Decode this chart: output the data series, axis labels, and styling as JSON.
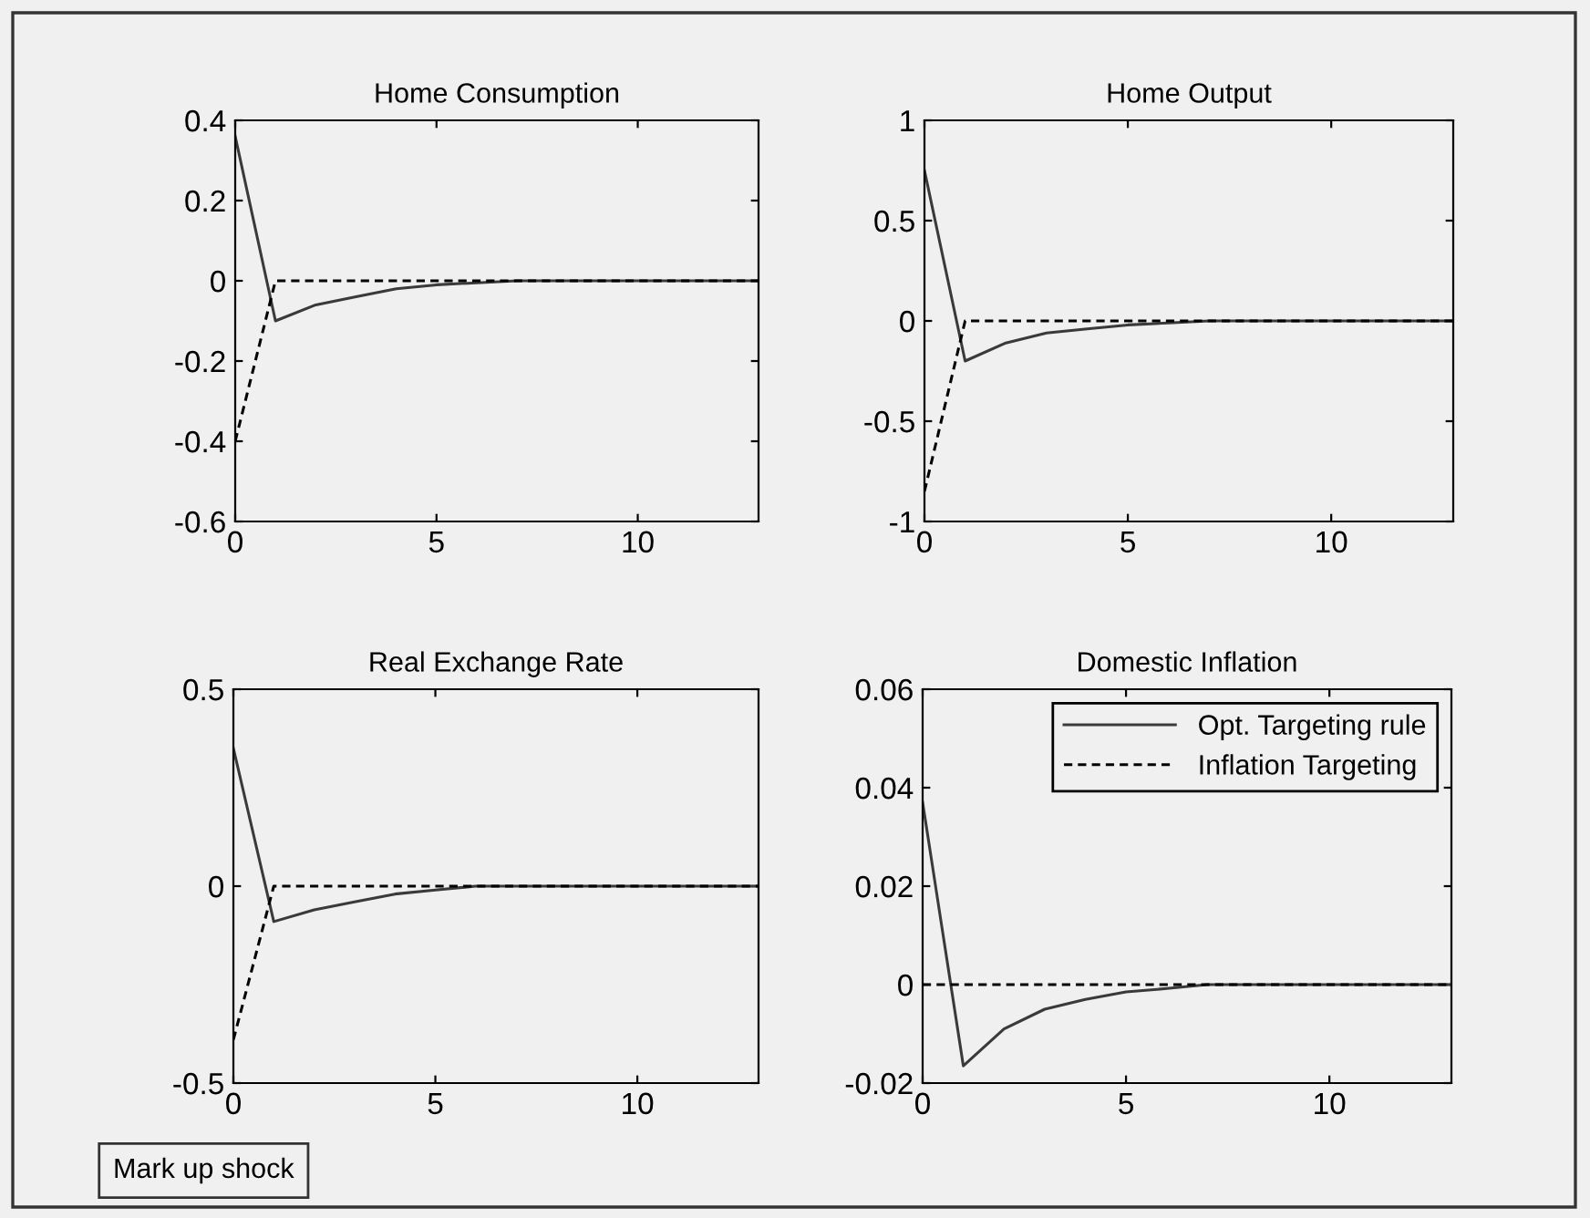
{
  "chart_data": [
    {
      "type": "line",
      "title": "Home Consumption",
      "x": [
        0,
        1,
        2,
        3,
        4,
        5,
        6,
        7,
        8,
        9,
        10,
        11,
        12,
        13
      ],
      "xlim": [
        0,
        13
      ],
      "xticks": [
        0,
        5,
        10
      ],
      "ylim": [
        -0.6,
        0.4
      ],
      "yticks": [
        -0.6,
        -0.4,
        -0.2,
        0,
        0.2,
        0.4
      ],
      "grid": false,
      "legend": false,
      "series": [
        {
          "color": "#3a3a3a",
          "line_style": "solid",
          "values": [
            0.36,
            -0.1,
            -0.06,
            -0.04,
            -0.02,
            -0.01,
            -0.005,
            0,
            0,
            0,
            0,
            0,
            0,
            0
          ]
        },
        {
          "color": "#000000",
          "line_style": "dashed",
          "values": [
            -0.4,
            0,
            0,
            0,
            0,
            0,
            0,
            0,
            0,
            0,
            0,
            0,
            0,
            0
          ]
        }
      ]
    },
    {
      "type": "line",
      "title": "Home Output",
      "x": [
        0,
        1,
        2,
        3,
        4,
        5,
        6,
        7,
        8,
        9,
        10,
        11,
        12,
        13
      ],
      "xlim": [
        0,
        13
      ],
      "xticks": [
        0,
        5,
        10
      ],
      "ylim": [
        -1,
        1
      ],
      "yticks": [
        -1,
        -0.5,
        0,
        0.5,
        1
      ],
      "grid": false,
      "legend": false,
      "series": [
        {
          "color": "#3a3a3a",
          "line_style": "solid",
          "values": [
            0.75,
            -0.2,
            -0.11,
            -0.06,
            -0.04,
            -0.02,
            -0.01,
            0,
            0,
            0,
            0,
            0,
            0,
            0
          ]
        },
        {
          "color": "#000000",
          "line_style": "dashed",
          "values": [
            -0.85,
            0,
            0,
            0,
            0,
            0,
            0,
            0,
            0,
            0,
            0,
            0,
            0,
            0
          ]
        }
      ]
    },
    {
      "type": "line",
      "title": "Real Exchange Rate",
      "x": [
        0,
        1,
        2,
        3,
        4,
        5,
        6,
        7,
        8,
        9,
        10,
        11,
        12,
        13
      ],
      "xlim": [
        0,
        13
      ],
      "xticks": [
        0,
        5,
        10
      ],
      "ylim": [
        -0.5,
        0.5
      ],
      "yticks": [
        -0.5,
        0,
        0.5
      ],
      "grid": false,
      "legend": false,
      "annotations": [
        "Mark up shock"
      ],
      "series": [
        {
          "color": "#3a3a3a",
          "line_style": "solid",
          "values": [
            0.35,
            -0.09,
            -0.06,
            -0.04,
            -0.02,
            -0.01,
            0,
            0,
            0,
            0,
            0,
            0,
            0,
            0
          ]
        },
        {
          "color": "#000000",
          "line_style": "dashed",
          "values": [
            -0.39,
            0,
            0,
            0,
            0,
            0,
            0,
            0,
            0,
            0,
            0,
            0,
            0,
            0
          ]
        }
      ]
    },
    {
      "type": "line",
      "title": "Domestic Inflation",
      "x": [
        0,
        1,
        2,
        3,
        4,
        5,
        6,
        7,
        8,
        9,
        10,
        11,
        12,
        13
      ],
      "xlim": [
        0,
        13
      ],
      "xticks": [
        0,
        5,
        10
      ],
      "ylim": [
        -0.02,
        0.06
      ],
      "yticks": [
        -0.02,
        0,
        0.02,
        0.04,
        0.06
      ],
      "grid": false,
      "legend": "top right",
      "series": [
        {
          "name": "Opt. Targeting rule",
          "color": "#3a3a3a",
          "line_style": "solid",
          "values": [
            0.037,
            -0.0165,
            -0.009,
            -0.005,
            -0.003,
            -0.0015,
            -0.0008,
            0,
            0,
            0,
            0,
            0,
            0,
            0
          ]
        },
        {
          "name": "Inflation Targeting",
          "color": "#000000",
          "line_style": "dashed",
          "values": [
            0,
            0,
            0,
            0,
            0,
            0,
            0,
            0,
            0,
            0,
            0,
            0,
            0,
            0
          ]
        }
      ]
    }
  ]
}
